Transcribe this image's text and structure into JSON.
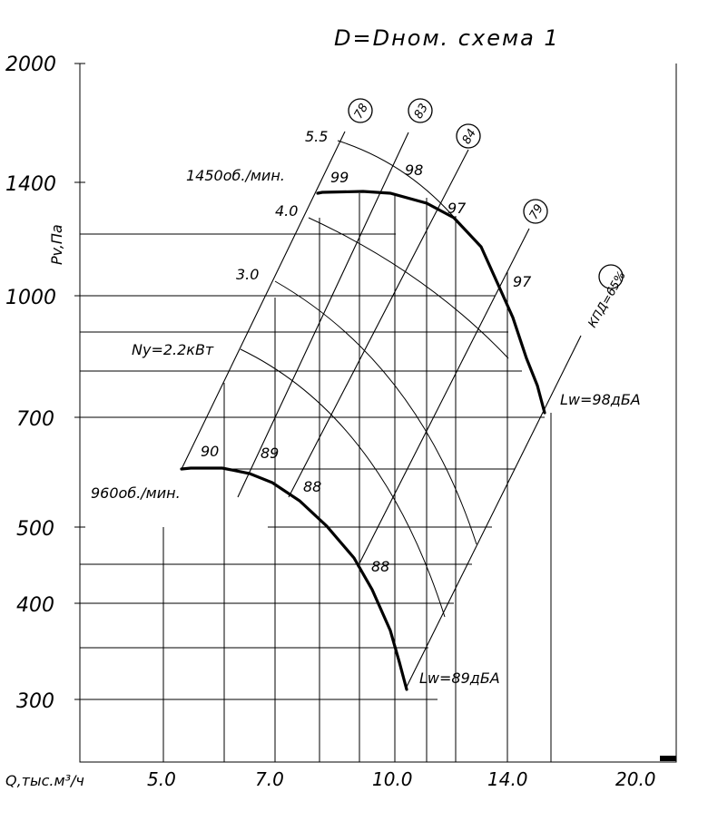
{
  "chart_data": {
    "type": "line",
    "title": "D=Dном. схема 1",
    "ylabel": "Pv,Па",
    "xlabel": "Q,тыс.м³/ч",
    "y_ticks": [
      "2000",
      "1400",
      "1000",
      "700",
      "500",
      "400",
      "300"
    ],
    "x_ticks": [
      "5.0",
      "7.0",
      "10.0",
      "14.0",
      "20.0"
    ],
    "series": [
      {
        "name": "1450об./мин.",
        "points": [
          [
            7.83,
            1380
          ],
          [
            8.1,
            1386
          ],
          [
            9.0,
            1386
          ],
          [
            10.5,
            1368
          ],
          [
            12.0,
            1303
          ],
          [
            13.5,
            1180
          ],
          [
            14.6,
            1032
          ],
          [
            15.6,
            712
          ]
        ]
      },
      {
        "name": "960об./мин.",
        "points": [
          [
            5.3,
            600
          ],
          [
            5.6,
            604
          ],
          [
            6.2,
            602
          ],
          [
            7.0,
            588
          ],
          [
            8.0,
            553
          ],
          [
            9.0,
            496
          ],
          [
            10.0,
            412
          ],
          [
            10.45,
            315
          ]
        ]
      }
    ],
    "power_labels": [
      "5.5",
      "4.0",
      "3.0",
      "Ny=2.2кВт"
    ],
    "efficiency_labels": [
      "78",
      "83",
      "84",
      "79",
      "КПД=65%"
    ],
    "noise_labels_1450": [
      "99",
      "98",
      "97",
      "97"
    ],
    "noise_labels_960": [
      "90",
      "89",
      "88",
      "88"
    ],
    "sound_power": [
      "Lw=98дБА",
      "Lw=89дБА"
    ]
  }
}
